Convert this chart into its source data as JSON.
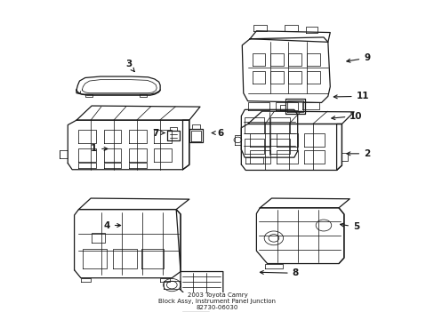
{
  "title": "2003 Toyota Camry\nBlock Assy, Instrument Panel Junction\n82730-06030",
  "bg_color": "#ffffff",
  "line_color": "#1a1a1a",
  "fig_width": 4.89,
  "fig_height": 3.6,
  "dpi": 100,
  "label_positions": {
    "1": [
      0.215,
      0.535,
      0.255,
      0.535
    ],
    "2": [
      0.845,
      0.52,
      0.79,
      0.52
    ],
    "3": [
      0.295,
      0.8,
      0.31,
      0.775
    ],
    "4": [
      0.245,
      0.295,
      0.285,
      0.295
    ],
    "5": [
      0.82,
      0.29,
      0.775,
      0.3
    ],
    "6": [
      0.508,
      0.585,
      0.485,
      0.585
    ],
    "7": [
      0.358,
      0.585,
      0.38,
      0.585
    ],
    "8": [
      0.68,
      0.145,
      0.59,
      0.148
    ],
    "9": [
      0.845,
      0.82,
      0.79,
      0.808
    ],
    "10": [
      0.82,
      0.638,
      0.755,
      0.63
    ],
    "11": [
      0.835,
      0.7,
      0.76,
      0.698
    ]
  }
}
